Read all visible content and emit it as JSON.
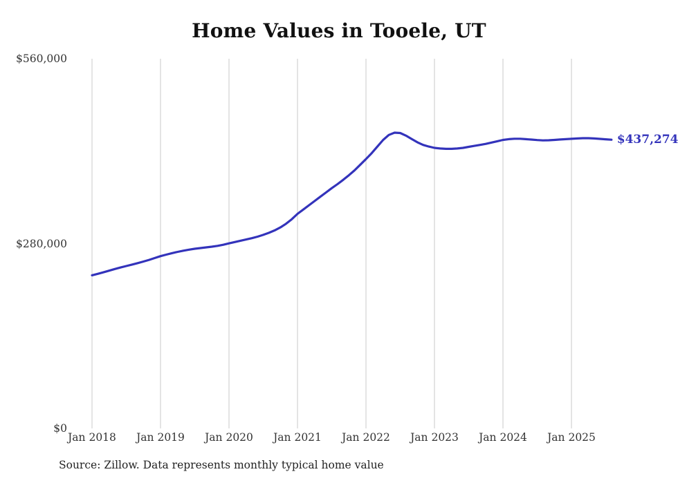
{
  "source_note": "Source: Zillow. Data represents monthly typical home value",
  "chart_data": {
    "type": "line",
    "title": "Home Values in Tooele, UT",
    "xlabel": "",
    "ylabel": "",
    "ylim": [
      0,
      560000
    ],
    "y_ticks": [
      0,
      280000,
      560000
    ],
    "y_tick_labels": [
      "$0",
      "$280,000",
      "$560,000"
    ],
    "x_tick_labels": [
      "Jan 2018",
      "Jan 2019",
      "Jan 2020",
      "Jan 2021",
      "Jan 2022",
      "Jan 2023",
      "Jan 2024",
      "Jan 2025"
    ],
    "x_tick_month_indices": [
      0,
      12,
      24,
      36,
      48,
      60,
      72,
      84
    ],
    "x_start": "Jan 2018",
    "x_end": "Aug 2025",
    "frequency": "monthly",
    "grid": "vertical-only",
    "legend_position": "none",
    "end_label": "$437,274",
    "end_value": 437274,
    "line_color": "#3333bb",
    "series": [
      {
        "name": "Typical home value, Tooele UT",
        "color": "#3333bb",
        "values": [
          232000,
          234200,
          236500,
          239000,
          241500,
          243800,
          246000,
          248200,
          250400,
          252800,
          255300,
          258100,
          261000,
          263300,
          265400,
          267400,
          269200,
          270800,
          272100,
          273200,
          274200,
          275300,
          276500,
          278200,
          280300,
          282300,
          284300,
          286200,
          288200,
          290500,
          293200,
          296300,
          300000,
          304500,
          310000,
          317000,
          325000,
          331500,
          338000,
          344500,
          351000,
          357500,
          364000,
          370000,
          376500,
          383500,
          391000,
          399500,
          408000,
          417000,
          427000,
          437000,
          444500,
          448000,
          447500,
          443500,
          438500,
          433500,
          429500,
          427000,
          425000,
          424000,
          423500,
          423500,
          424000,
          425000,
          426500,
          428000,
          429500,
          431000,
          433000,
          435000,
          437000,
          438200,
          438800,
          438800,
          438200,
          437500,
          436800,
          436300,
          436500,
          437000,
          437600,
          438200,
          438700,
          439200,
          439600,
          439600,
          439200,
          438600,
          438000,
          437274
        ]
      }
    ]
  }
}
